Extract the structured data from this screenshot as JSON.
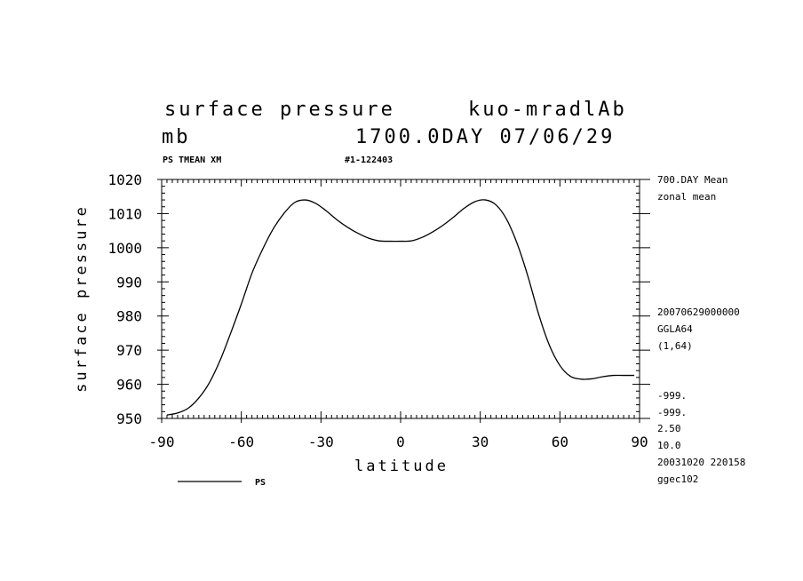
{
  "header": {
    "title": "surface pressure",
    "experiment": "kuo-mradlAb",
    "units": "mb",
    "day_date": "1700.0DAY 07/06/29",
    "var_desc": "PS TMEAN XM",
    "run_id": "#1-122403"
  },
  "side_info": {
    "mean_label": "700.DAY Mean",
    "zonal_label": "zonal mean",
    "timestamp": "20070629000000",
    "grid": "GGLA64",
    "index": "(1,64)",
    "undef1": "-999.",
    "undef2": "-999.",
    "val1": "2.50",
    "val2": "10.0",
    "created": "20031020 220158",
    "source": "ggec102"
  },
  "legend": {
    "label": "PS"
  },
  "chart_data": {
    "type": "line",
    "title": "surface pressure",
    "xlabel": "latitude",
    "ylabel": "surface pressure",
    "xlim": [
      -90,
      90
    ],
    "ylim": [
      950,
      1020
    ],
    "x_ticks": [
      -90,
      -60,
      -30,
      0,
      30,
      60,
      90
    ],
    "y_ticks": [
      950,
      960,
      970,
      980,
      990,
      1000,
      1010,
      1020
    ],
    "x_tick_labels": [
      "-90",
      "-60",
      "-30",
      "0",
      "30",
      "60",
      "90"
    ],
    "y_tick_labels": [
      "950",
      "960",
      "970",
      "980",
      "990",
      "1000",
      "1010",
      "1020"
    ],
    "grid": false,
    "series": [
      {
        "name": "PS",
        "x": [
          -88,
          -84,
          -80,
          -76,
          -72,
          -68,
          -64,
          -60,
          -56,
          -52,
          -48,
          -44,
          -40,
          -36,
          -32,
          -28,
          -24,
          -20,
          -16,
          -12,
          -8,
          -4,
          0,
          4,
          8,
          12,
          16,
          20,
          24,
          28,
          32,
          36,
          40,
          44,
          48,
          52,
          56,
          60,
          64,
          68,
          72,
          76,
          80,
          84,
          88
        ],
        "values": [
          951.0,
          951.6,
          953.0,
          956.0,
          960.5,
          967.0,
          975.0,
          983.5,
          992.5,
          999.5,
          1005.5,
          1010.0,
          1013.2,
          1014.0,
          1013.0,
          1010.8,
          1008.2,
          1006.0,
          1004.2,
          1002.8,
          1002.0,
          1001.9,
          1001.9,
          1002.0,
          1003.0,
          1004.6,
          1006.6,
          1009.0,
          1011.6,
          1013.5,
          1014.0,
          1012.5,
          1008.2,
          1001.0,
          991.5,
          980.5,
          971.5,
          965.5,
          962.3,
          961.5,
          961.6,
          962.2,
          962.6,
          962.6,
          962.6
        ]
      }
    ]
  }
}
